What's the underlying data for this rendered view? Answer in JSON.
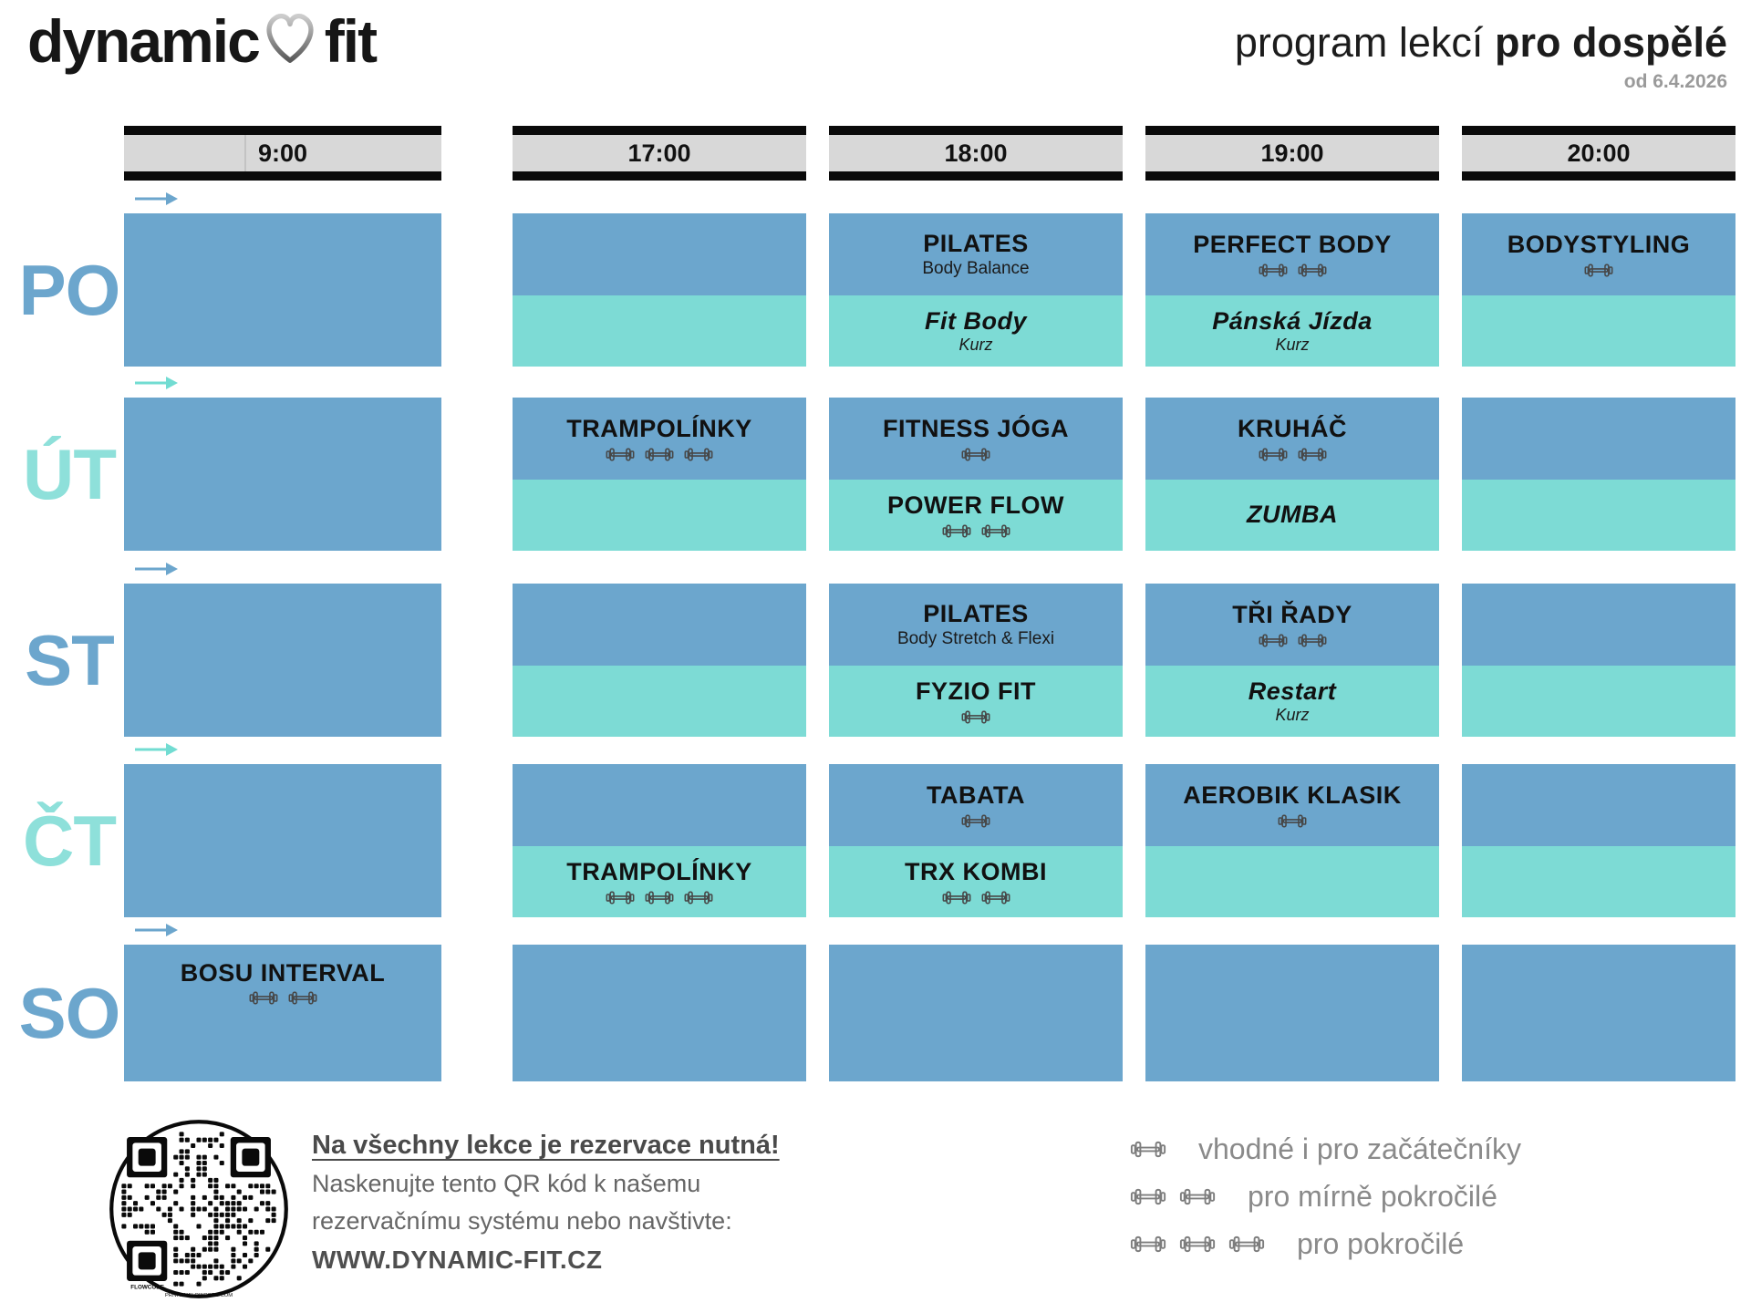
{
  "colors": {
    "blue": "#6CA6CD",
    "teal": "#7DDBD5",
    "dayBlue": "#6CA6CD",
    "dayTeal": "#8EE0DA",
    "arrowBlue": "#6CA6CD",
    "arrowTeal": "#72DCD2",
    "headerBg": "#D8D8D8",
    "bar": "#0A0A0A",
    "ink": "#111111",
    "noteHead": "#4A4A4A",
    "noteBody": "#666666",
    "url": "#4F4F4F",
    "legendGray": "#8A8A8A",
    "dateGray": "#9A9A9A",
    "dbBlock": "#474747",
    "dbLegend": "#7D7D7D"
  },
  "header": {
    "logo_left": "dynamic",
    "logo_right": "fit",
    "heart_icon": "heart-outline-icon",
    "title_regular": "program lekcí ",
    "title_bold": "pro dospělé",
    "valid_from": "od 6.4.2026"
  },
  "times": [
    "9:00",
    "17:00",
    "18:00",
    "19:00",
    "20:00"
  ],
  "schedule": {
    "rows": [
      {
        "day": "PO",
        "cells": [
          {},
          {},
          {
            "top": {
              "title": "PILATES",
              "subtitle": "Body Balance",
              "dumbbells": 0
            },
            "bottom": {
              "title": "Fit Body",
              "subtitle": "Kurz",
              "dumbbells": 0
            }
          },
          {
            "top": {
              "title": "PERFECT BODY",
              "subtitle": "",
              "dumbbells": 2
            },
            "bottom": {
              "title": "Pánská Jízda",
              "subtitle": "Kurz",
              "dumbbells": 0
            }
          },
          {
            "top": {
              "title": "BODYSTYLING",
              "subtitle": "",
              "dumbbells": 1
            },
            "bottom": {
              "title": "",
              "subtitle": "",
              "dumbbells": 0
            }
          }
        ]
      },
      {
        "day": "ÚT",
        "cells": [
          {},
          {
            "top": {
              "title": "TRAMPOLÍNKY",
              "subtitle": "",
              "dumbbells": 3
            },
            "bottom": {
              "title": "",
              "subtitle": "",
              "dumbbells": 0
            }
          },
          {
            "top": {
              "title": "FITNESS JÓGA",
              "subtitle": "",
              "dumbbells": 1
            },
            "bottom": {
              "title": "POWER FLOW",
              "subtitle": "",
              "dumbbells": 2
            }
          },
          {
            "top": {
              "title": "KRUHÁČ",
              "subtitle": "",
              "dumbbells": 2
            },
            "bottom": {
              "title": "ZUMBA",
              "subtitle": "",
              "dumbbells": 0
            }
          },
          {}
        ]
      },
      {
        "day": "ST",
        "cells": [
          {},
          {},
          {
            "top": {
              "title": "PILATES",
              "subtitle": "Body Stretch & Flexi",
              "dumbbells": 0
            },
            "bottom": {
              "title": "FYZIO FIT",
              "subtitle": "",
              "dumbbells": 1
            }
          },
          {
            "top": {
              "title": "TŘI ŘADY",
              "subtitle": "",
              "dumbbells": 2
            },
            "bottom": {
              "title": "Restart",
              "subtitle": "Kurz",
              "dumbbells": 0
            }
          },
          {}
        ]
      },
      {
        "day": "ČT",
        "cells": [
          {},
          {
            "top": {
              "title": "",
              "subtitle": "",
              "dumbbells": 0
            },
            "bottom": {
              "title": "TRAMPOLÍNKY",
              "subtitle": "",
              "dumbbells": 3
            }
          },
          {
            "top": {
              "title": "TABATA",
              "subtitle": "",
              "dumbbells": 1
            },
            "bottom": {
              "title": "TRX KOMBI",
              "subtitle": "",
              "dumbbells": 2
            }
          },
          {
            "top": {
              "title": "AEROBIK KLASIK",
              "subtitle": "",
              "dumbbells": 1
            },
            "bottom": {
              "title": "",
              "subtitle": "",
              "dumbbells": 0
            }
          },
          {}
        ]
      },
      {
        "day": "SO",
        "cells": [
          {
            "top": {
              "title": "BOSU INTERVAL",
              "subtitle": "",
              "dumbbells": 2
            }
          },
          {},
          {},
          {},
          {}
        ]
      }
    ]
  },
  "footer": {
    "reservation": {
      "line1": "Na všechny lekce je rezervace nutná!",
      "line2": "Naskenujte tento QR kód k našemu",
      "line3": "rezervačnímu systému nebo navštivte:",
      "website": "WWW.DYNAMIC-FIT.CZ"
    },
    "qr": {
      "label1": "FLOWCODE",
      "label2": "PRIVACY.FLOWCODE.COM"
    }
  },
  "legend": {
    "items": [
      {
        "dumbbells": 1,
        "label": "vhodné i pro začátečníky"
      },
      {
        "dumbbells": 2,
        "label": "pro mírně pokročilé"
      },
      {
        "dumbbells": 3,
        "label": "pro pokročilé"
      }
    ]
  }
}
